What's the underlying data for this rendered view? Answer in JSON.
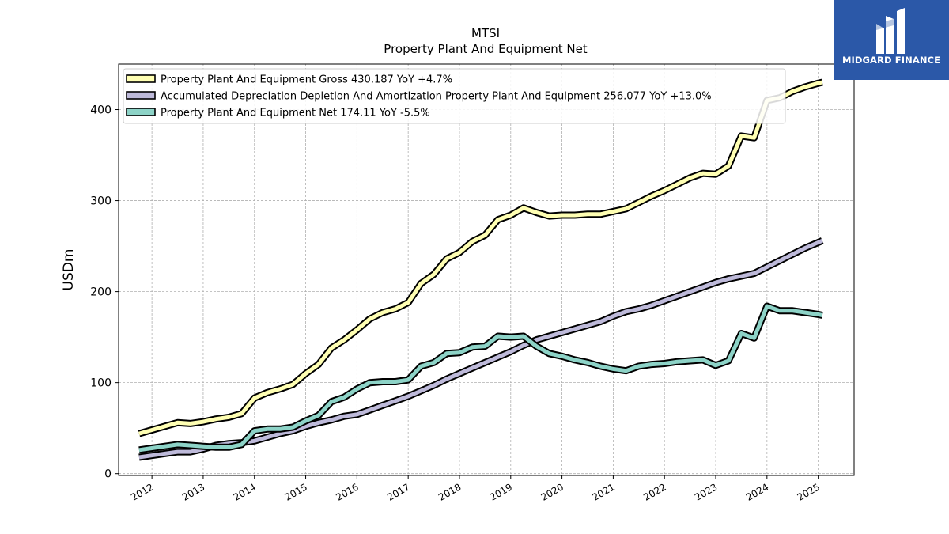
{
  "chart_data": {
    "type": "line",
    "title": "MTSI",
    "subtitle": "Property Plant And Equipment Net",
    "ylabel": "USDm",
    "xlabel": "",
    "ylim": [
      -2,
      450
    ],
    "xlim": [
      2011.35,
      2025.7
    ],
    "yticks": [
      0,
      100,
      200,
      300,
      400
    ],
    "xticks": [
      "2012",
      "2013",
      "2014",
      "2015",
      "2016",
      "2017",
      "2018",
      "2019",
      "2020",
      "2021",
      "2022",
      "2023",
      "2024",
      "2025"
    ],
    "grid": true,
    "legend_position": "top-left",
    "series": [
      {
        "name": "Property Plant And Equipment Gross",
        "legend_label": "Property Plant And Equipment Gross  430.187 YoY +4.7%",
        "color": "#ffffb3",
        "x": [
          2011.75,
          2012.0,
          2012.5,
          2012.75,
          2013.0,
          2013.25,
          2013.5,
          2013.75,
          2014.0,
          2014.25,
          2014.5,
          2014.75,
          2015.0,
          2015.25,
          2015.5,
          2015.75,
          2016.0,
          2016.25,
          2016.5,
          2016.75,
          2017.0,
          2017.25,
          2017.5,
          2017.75,
          2018.0,
          2018.25,
          2018.5,
          2018.75,
          2019.0,
          2019.25,
          2019.5,
          2019.75,
          2020.0,
          2020.25,
          2020.5,
          2020.75,
          2021.0,
          2021.25,
          2021.5,
          2021.75,
          2022.0,
          2022.25,
          2022.5,
          2022.75,
          2023.0,
          2023.25,
          2023.5,
          2023.75,
          2024.0,
          2024.25,
          2024.5,
          2024.75,
          2025.0,
          2025.08
        ],
        "values": [
          44,
          48,
          56,
          55,
          57,
          60,
          62,
          66,
          83,
          89,
          93,
          98,
          110,
          120,
          138,
          147,
          158,
          170,
          177,
          181,
          188,
          209,
          219,
          236,
          243,
          255,
          262,
          279,
          284,
          292,
          287,
          283,
          284,
          284,
          285,
          285,
          288,
          291,
          298,
          305,
          311,
          318,
          325,
          330,
          329,
          338,
          371,
          369,
          410,
          413,
          420,
          425,
          429,
          430
        ]
      },
      {
        "name": "Accumulated Depreciation Depletion And Amortization Property Plant And Equipment",
        "legend_label": "Accumulated Depreciation Depletion And Amortization Property Plant And Equipment  256.077 YoY +13.0%",
        "color": "#bebada",
        "x": [
          2011.75,
          2012.0,
          2012.5,
          2012.75,
          2013.0,
          2013.25,
          2013.5,
          2013.75,
          2014.0,
          2014.25,
          2014.5,
          2014.75,
          2015.0,
          2015.25,
          2015.5,
          2015.75,
          2016.0,
          2016.25,
          2016.5,
          2016.75,
          2017.0,
          2017.25,
          2017.5,
          2017.75,
          2018.0,
          2018.25,
          2018.5,
          2018.75,
          2019.0,
          2019.25,
          2019.5,
          2019.75,
          2020.0,
          2020.25,
          2020.5,
          2020.75,
          2021.0,
          2021.25,
          2021.5,
          2021.75,
          2022.0,
          2022.25,
          2022.5,
          2022.75,
          2023.0,
          2023.25,
          2023.5,
          2023.75,
          2024.0,
          2024.25,
          2024.5,
          2024.75,
          2025.0,
          2025.08
        ],
        "values": [
          18,
          20,
          24,
          24,
          27,
          31,
          33,
          34,
          36,
          40,
          44,
          47,
          52,
          56,
          59,
          63,
          65,
          70,
          75,
          80,
          85,
          91,
          97,
          104,
          110,
          116,
          122,
          128,
          134,
          141,
          147,
          151,
          155,
          159,
          163,
          167,
          173,
          178,
          181,
          185,
          190,
          195,
          200,
          205,
          210,
          214,
          217,
          220,
          227,
          234,
          241,
          248,
          254,
          256
        ]
      },
      {
        "name": "Property Plant And Equipment Net",
        "legend_label": "Property Plant And Equipment Net  174.11 YoY -5.5%",
        "color": "#8dd3c7",
        "x": [
          2011.75,
          2012.0,
          2012.5,
          2012.75,
          2013.0,
          2013.25,
          2013.5,
          2013.75,
          2014.0,
          2014.25,
          2014.5,
          2014.75,
          2015.0,
          2015.25,
          2015.5,
          2015.75,
          2016.0,
          2016.25,
          2016.5,
          2016.75,
          2017.0,
          2017.25,
          2017.5,
          2017.75,
          2018.0,
          2018.25,
          2018.5,
          2018.75,
          2019.0,
          2019.25,
          2019.5,
          2019.75,
          2020.0,
          2020.25,
          2020.5,
          2020.75,
          2021.0,
          2021.25,
          2021.5,
          2021.75,
          2022.0,
          2022.25,
          2022.5,
          2022.75,
          2023.0,
          2023.25,
          2023.5,
          2023.75,
          2024.0,
          2024.25,
          2024.5,
          2024.75,
          2025.0,
          2025.08
        ],
        "values": [
          26,
          28,
          32,
          31,
          30,
          29,
          29,
          32,
          47,
          49,
          49,
          51,
          58,
          64,
          79,
          84,
          93,
          100,
          101,
          101,
          103,
          118,
          122,
          132,
          133,
          139,
          140,
          151,
          150,
          151,
          140,
          132,
          129,
          125,
          122,
          118,
          115,
          113,
          118,
          120,
          121,
          123,
          124,
          125,
          119,
          124,
          154,
          149,
          184,
          179,
          179,
          177,
          175,
          174
        ]
      }
    ]
  },
  "logo": {
    "text": "MIDGARD FINANCE"
  }
}
